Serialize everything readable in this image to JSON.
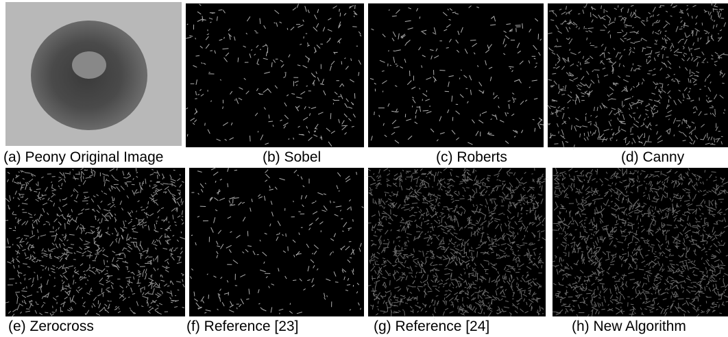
{
  "figure": {
    "panels": [
      {
        "caption": "(a) Peony Original Image"
      },
      {
        "caption": "(b) Sobel"
      },
      {
        "caption": "(c) Roberts"
      },
      {
        "caption": "(d) Canny"
      },
      {
        "caption": "(e) Zerocross"
      },
      {
        "caption": "(f) Reference [23]"
      },
      {
        "caption": "(g) Reference [24]"
      },
      {
        "caption": "(h) New Algorithm"
      }
    ]
  }
}
